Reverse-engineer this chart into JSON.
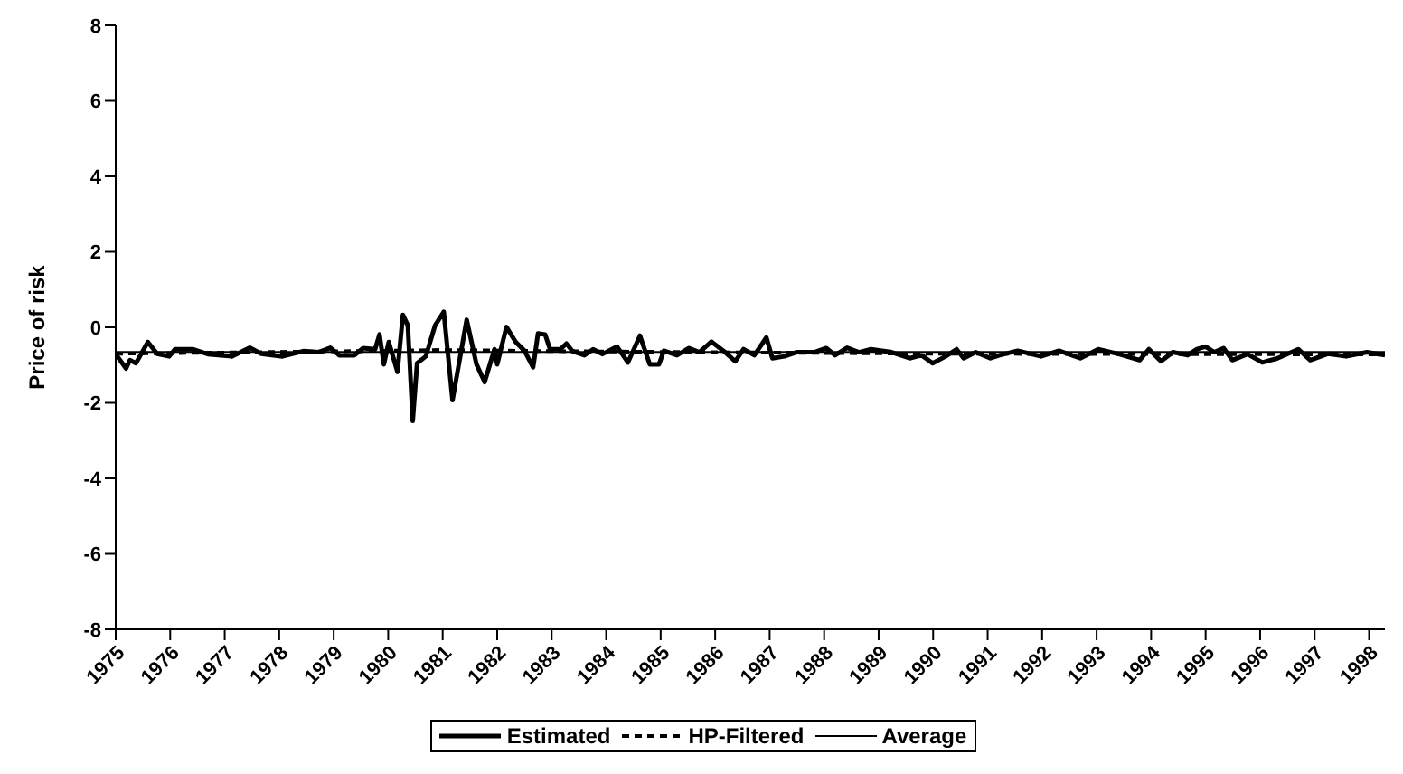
{
  "chart_data": {
    "type": "line",
    "ylabel": "Price of risk",
    "xlim": [
      1975,
      1998.29
    ],
    "xticks": [
      1975,
      1976,
      1977,
      1978,
      1979,
      1980,
      1981,
      1982,
      1983,
      1984,
      1985,
      1986,
      1987,
      1988,
      1989,
      1990,
      1991,
      1992,
      1993,
      1994,
      1995,
      1996,
      1997,
      1998
    ],
    "ylim": [
      -8,
      8
    ],
    "yticks": [
      -8,
      -6,
      -4,
      -2,
      0,
      2,
      4,
      6,
      8
    ],
    "grid": false,
    "legend": "bottom",
    "marker": "none",
    "series": [
      {
        "name": "Estimated",
        "color": "#000000",
        "line_style": "solid",
        "x": [
          1975.0,
          1975.19,
          1975.26,
          1975.37,
          1975.59,
          1975.76,
          1975.98,
          1976.09,
          1976.41,
          1976.69,
          1977.13,
          1977.46,
          1977.67,
          1978.06,
          1978.44,
          1978.72,
          1978.94,
          1979.1,
          1979.38,
          1979.54,
          1979.76,
          1979.84,
          1979.92,
          1980.01,
          1980.17,
          1980.27,
          1980.36,
          1980.45,
          1980.53,
          1980.69,
          1980.86,
          1981.02,
          1981.18,
          1981.44,
          1981.62,
          1981.77,
          1981.95,
          1982.0,
          1982.17,
          1982.34,
          1982.5,
          1982.66,
          1982.75,
          1982.88,
          1982.97,
          1983.16,
          1983.27,
          1983.38,
          1983.6,
          1983.76,
          1983.93,
          1984.2,
          1984.4,
          1984.62,
          1984.8,
          1984.97,
          1985.06,
          1985.3,
          1985.52,
          1985.71,
          1985.93,
          1986.15,
          1986.37,
          1986.52,
          1986.72,
          1986.94,
          1987.05,
          1987.27,
          1987.49,
          1987.82,
          1988.04,
          1988.2,
          1988.42,
          1988.64,
          1988.86,
          1989.24,
          1989.57,
          1989.79,
          1989.99,
          1990.23,
          1990.43,
          1990.56,
          1990.78,
          1991.05,
          1991.22,
          1991.55,
          1991.98,
          1992.31,
          1992.7,
          1993.03,
          1993.41,
          1993.79,
          1993.96,
          1994.18,
          1994.4,
          1994.67,
          1994.84,
          1995.0,
          1995.16,
          1995.33,
          1995.49,
          1995.77,
          1996.04,
          1996.32,
          1996.7,
          1996.92,
          1997.25,
          1997.58,
          1997.96,
          1998.29
        ],
        "values": [
          -0.71,
          -1.09,
          -0.87,
          -0.95,
          -0.39,
          -0.7,
          -0.77,
          -0.58,
          -0.58,
          -0.71,
          -0.77,
          -0.54,
          -0.7,
          -0.77,
          -0.63,
          -0.66,
          -0.54,
          -0.74,
          -0.74,
          -0.55,
          -0.58,
          -0.19,
          -0.98,
          -0.39,
          -1.18,
          0.33,
          0.05,
          -2.48,
          -0.95,
          -0.77,
          0.05,
          0.41,
          -1.93,
          0.2,
          -0.98,
          -1.45,
          -0.58,
          -0.98,
          0.01,
          -0.39,
          -0.62,
          -1.06,
          -0.16,
          -0.19,
          -0.58,
          -0.58,
          -0.43,
          -0.63,
          -0.74,
          -0.58,
          -0.71,
          -0.51,
          -0.93,
          -0.22,
          -0.98,
          -0.98,
          -0.62,
          -0.74,
          -0.55,
          -0.66,
          -0.38,
          -0.62,
          -0.9,
          -0.58,
          -0.74,
          -0.27,
          -0.82,
          -0.77,
          -0.66,
          -0.66,
          -0.55,
          -0.74,
          -0.54,
          -0.66,
          -0.58,
          -0.66,
          -0.82,
          -0.74,
          -0.95,
          -0.77,
          -0.58,
          -0.82,
          -0.66,
          -0.82,
          -0.74,
          -0.62,
          -0.77,
          -0.62,
          -0.82,
          -0.58,
          -0.71,
          -0.87,
          -0.58,
          -0.9,
          -0.66,
          -0.74,
          -0.58,
          -0.51,
          -0.66,
          -0.55,
          -0.87,
          -0.71,
          -0.93,
          -0.82,
          -0.58,
          -0.87,
          -0.7,
          -0.77,
          -0.66,
          -0.74
        ]
      },
      {
        "name": "HP-Filtered",
        "color": "#000000",
        "line_style": "dashed",
        "x": [
          1975.0,
          1980.0,
          1981.0,
          1983.0,
          1990.0,
          1998.29
        ],
        "values": [
          -0.7,
          -0.62,
          -0.6,
          -0.63,
          -0.7,
          -0.72
        ]
      },
      {
        "name": "Average",
        "color": "#000000",
        "line_style": "solid",
        "x": [
          1975.0,
          1998.29
        ],
        "values": [
          -0.65,
          -0.65
        ]
      }
    ]
  }
}
